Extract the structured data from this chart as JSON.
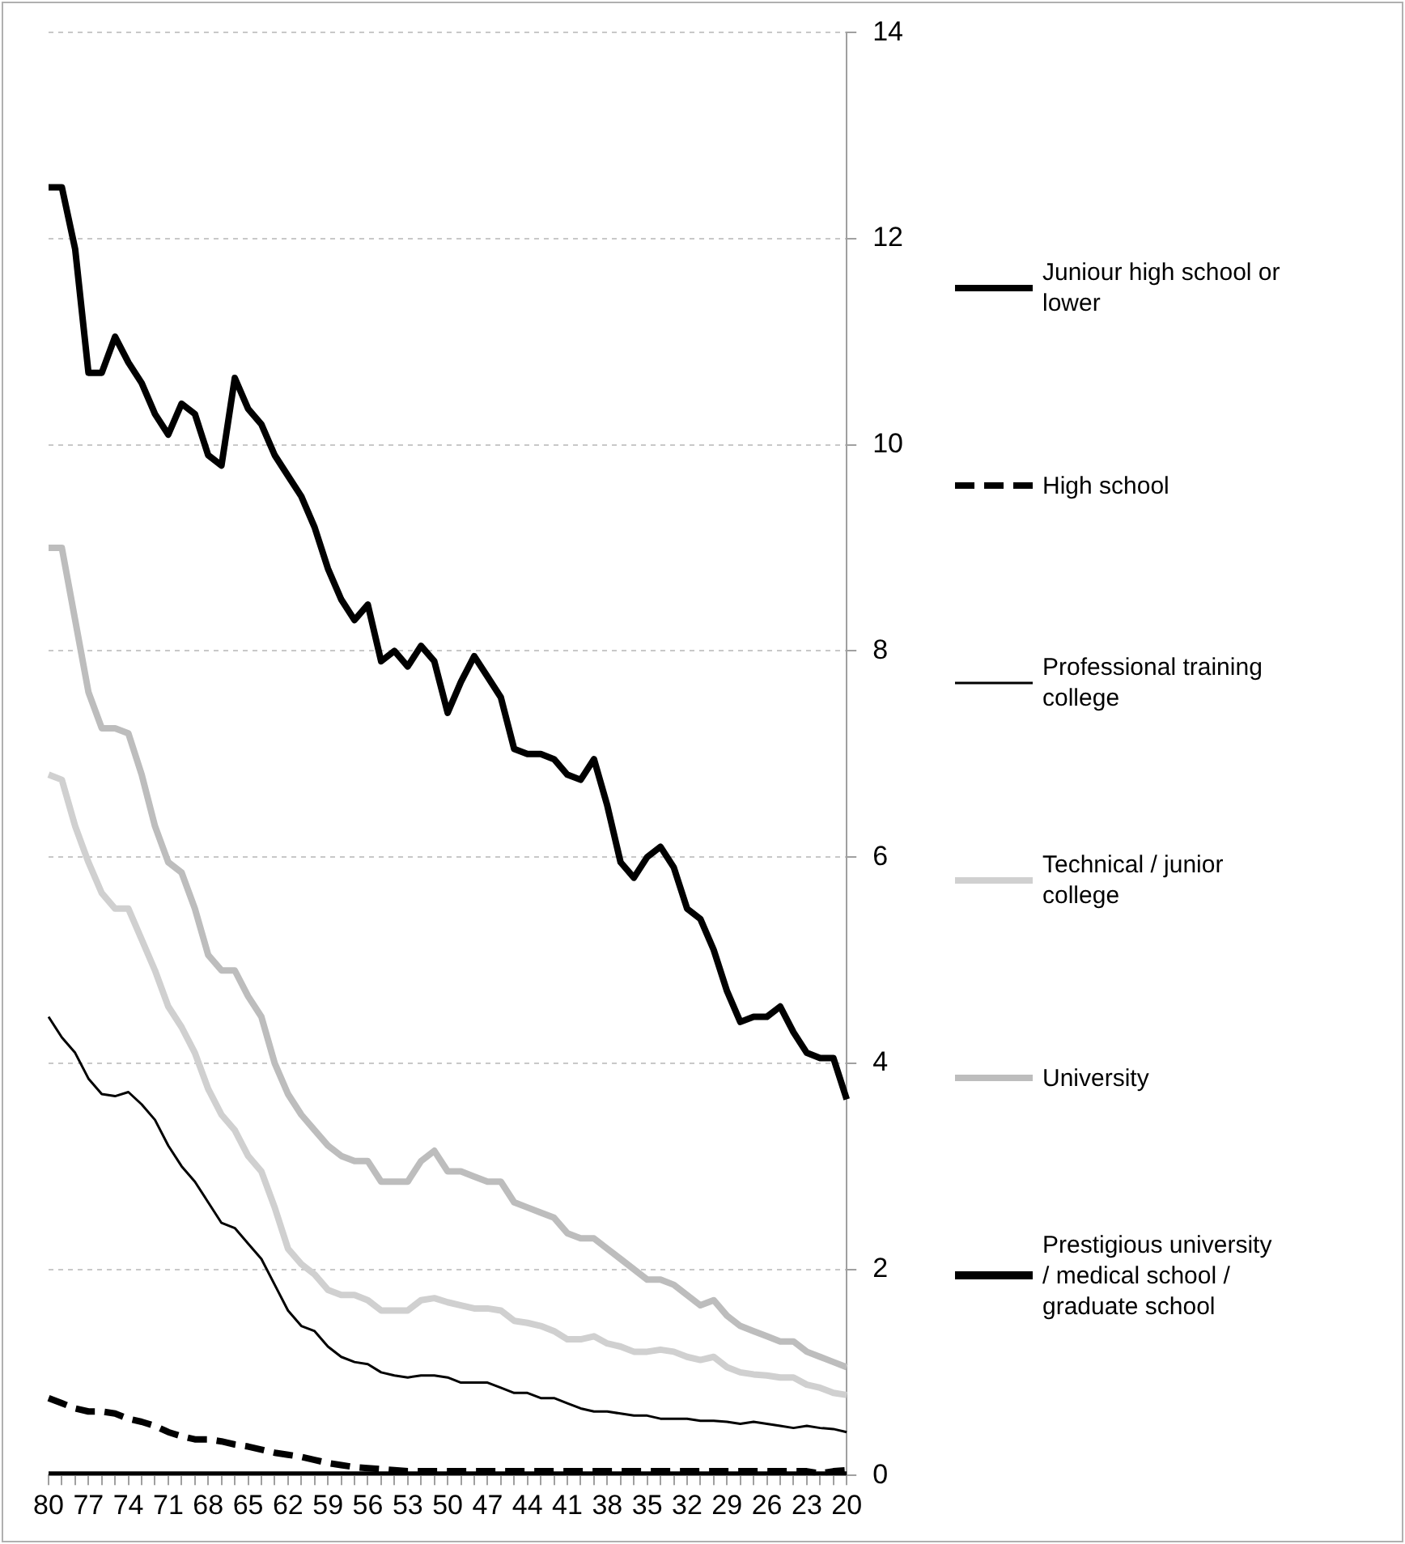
{
  "chart_data": {
    "type": "line",
    "categories": [
      "80",
      null,
      null,
      "77",
      null,
      null,
      "74",
      null,
      null,
      "71",
      null,
      null,
      "68",
      null,
      null,
      "65",
      null,
      null,
      "62",
      null,
      null,
      "59",
      null,
      null,
      "56",
      null,
      null,
      "53",
      null,
      null,
      "50",
      null,
      null,
      "47",
      null,
      null,
      "44",
      null,
      null,
      "41",
      null,
      null,
      "38",
      null,
      null,
      "35",
      null,
      null,
      "32",
      null,
      null,
      "29",
      null,
      null,
      "26",
      null,
      null,
      "23",
      null,
      null,
      "20"
    ],
    "series": [
      {
        "name": "Juniour high school or lower",
        "color": "#000000",
        "values": [
          12.5,
          12.5,
          11.9,
          10.7,
          10.7,
          11.05,
          10.8,
          10.6,
          10.3,
          10.1,
          10.4,
          10.3,
          9.9,
          9.8,
          10.65,
          10.35,
          10.2,
          9.9,
          9.7,
          9.5,
          9.2,
          8.8,
          8.5,
          8.3,
          8.45,
          7.9,
          8.0,
          7.85,
          8.05,
          7.9,
          7.4,
          7.7,
          7.95,
          7.75,
          7.55,
          7.05,
          7.0,
          7.0,
          6.95,
          6.8,
          6.75,
          6.95,
          6.5,
          5.95,
          5.8,
          6.0,
          6.1,
          5.9,
          5.5,
          5.4,
          5.1,
          4.7,
          4.4,
          4.45,
          4.45,
          4.55,
          4.3,
          4.1,
          4.05,
          4.05,
          3.65
        ]
      },
      {
        "name": "High school",
        "color": "#000000",
        "line_style": "dashed",
        "values": [
          0.75,
          0.7,
          0.65,
          0.62,
          0.62,
          0.6,
          0.55,
          0.52,
          0.48,
          0.42,
          0.38,
          0.35,
          0.35,
          0.33,
          0.3,
          0.28,
          0.25,
          0.22,
          0.2,
          0.18,
          0.15,
          0.12,
          0.1,
          0.08,
          0.07,
          0.06,
          0.05,
          0.04,
          0.04,
          0.04,
          0.04,
          0.04,
          0.04,
          0.04,
          0.04,
          0.04,
          0.04,
          0.04,
          0.04,
          0.04,
          0.04,
          0.04,
          0.04,
          0.04,
          0.04,
          0.04,
          0.04,
          0.04,
          0.04,
          0.04,
          0.04,
          0.04,
          0.04,
          0.04,
          0.04,
          0.04,
          0.04,
          0.04,
          0.02,
          0.04,
          0.05
        ]
      },
      {
        "name": "Professional training college",
        "color": "#000000",
        "values": [
          4.45,
          4.25,
          4.1,
          3.85,
          3.7,
          3.68,
          3.72,
          3.6,
          3.45,
          3.2,
          3.0,
          2.85,
          2.65,
          2.45,
          2.4,
          2.25,
          2.1,
          1.85,
          1.6,
          1.45,
          1.4,
          1.25,
          1.15,
          1.1,
          1.08,
          1.0,
          0.97,
          0.95,
          0.97,
          0.97,
          0.95,
          0.9,
          0.9,
          0.9,
          0.85,
          0.8,
          0.8,
          0.75,
          0.75,
          0.7,
          0.65,
          0.62,
          0.62,
          0.6,
          0.58,
          0.58,
          0.55,
          0.55,
          0.55,
          0.53,
          0.53,
          0.52,
          0.5,
          0.52,
          0.5,
          0.48,
          0.46,
          0.48,
          0.46,
          0.45,
          0.42
        ]
      },
      {
        "name": "Technical / junior college",
        "color": "#d0d0d0",
        "values": [
          6.8,
          6.75,
          6.3,
          5.95,
          5.65,
          5.5,
          5.5,
          5.2,
          4.9,
          4.55,
          4.35,
          4.1,
          3.75,
          3.5,
          3.35,
          3.1,
          2.95,
          2.6,
          2.2,
          2.05,
          1.95,
          1.8,
          1.75,
          1.75,
          1.7,
          1.6,
          1.6,
          1.6,
          1.7,
          1.72,
          1.68,
          1.65,
          1.62,
          1.62,
          1.6,
          1.5,
          1.48,
          1.45,
          1.4,
          1.32,
          1.32,
          1.35,
          1.28,
          1.25,
          1.2,
          1.2,
          1.22,
          1.2,
          1.15,
          1.12,
          1.15,
          1.05,
          1.0,
          0.98,
          0.97,
          0.95,
          0.95,
          0.88,
          0.85,
          0.8,
          0.78
        ]
      },
      {
        "name": "University",
        "color": "#bdbdbd",
        "values": [
          9.0,
          9.0,
          8.3,
          7.6,
          7.25,
          7.25,
          7.2,
          6.8,
          6.3,
          5.95,
          5.85,
          5.5,
          5.05,
          4.9,
          4.9,
          4.65,
          4.45,
          4.0,
          3.7,
          3.5,
          3.35,
          3.2,
          3.1,
          3.05,
          3.05,
          2.85,
          2.85,
          2.85,
          3.05,
          3.15,
          2.95,
          2.95,
          2.9,
          2.85,
          2.85,
          2.65,
          2.6,
          2.55,
          2.5,
          2.35,
          2.3,
          2.3,
          2.2,
          2.1,
          2.0,
          1.9,
          1.9,
          1.85,
          1.75,
          1.65,
          1.7,
          1.55,
          1.45,
          1.4,
          1.35,
          1.3,
          1.3,
          1.2,
          1.15,
          1.1,
          1.05
        ]
      },
      {
        "name": "Prestigious university / medical school / graduate school",
        "color": "#000000",
        "values": [
          0,
          0,
          0,
          0,
          0,
          0,
          0,
          0,
          0,
          0,
          0,
          0,
          0,
          0,
          0,
          0,
          0,
          0,
          0,
          0,
          0,
          0,
          0,
          0,
          0,
          0,
          0,
          0,
          0,
          0,
          0,
          0,
          0,
          0,
          0,
          0,
          0,
          0,
          0,
          0,
          0,
          0,
          0,
          0,
          0,
          0,
          0,
          0,
          0,
          0,
          0,
          0,
          0,
          0,
          0,
          0,
          0,
          0,
          0,
          0,
          0
        ]
      }
    ],
    "ylim": [
      0,
      14
    ],
    "yticks": [
      0,
      2,
      4,
      6,
      8,
      10,
      12,
      14
    ],
    "grid": "y",
    "legend": "right",
    "marker": "none"
  }
}
